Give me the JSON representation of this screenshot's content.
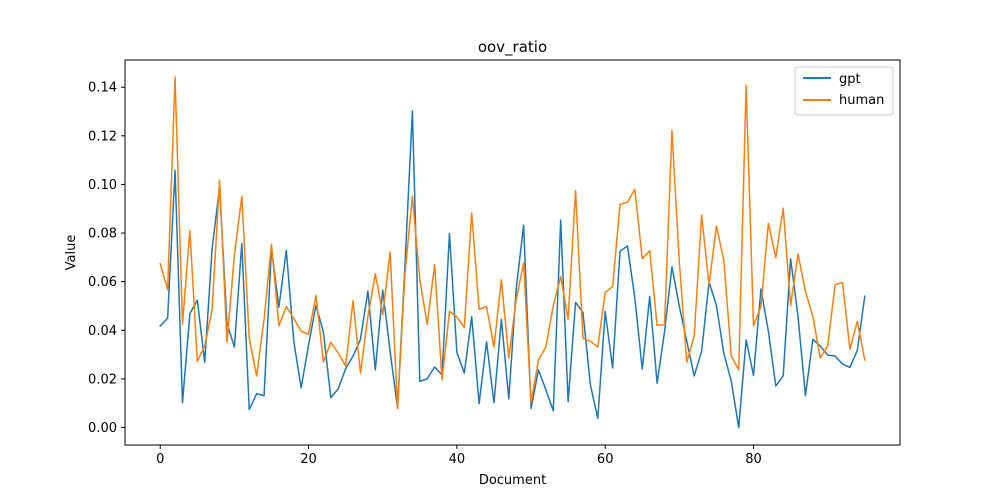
{
  "chart_data": {
    "type": "line",
    "title": "oov_ratio",
    "xlabel": "Document",
    "ylabel": "Value",
    "xlim": [
      -4.75,
      99.75
    ],
    "ylim": [
      -0.0072,
      0.1512
    ],
    "xticks": [
      0,
      20,
      40,
      60,
      80
    ],
    "yticks": [
      0.0,
      0.02,
      0.04,
      0.06,
      0.08,
      0.1,
      0.12,
      0.14
    ],
    "ytick_labels": [
      "0.00",
      "0.02",
      "0.04",
      "0.06",
      "0.08",
      "0.10",
      "0.12",
      "0.14"
    ],
    "legend_position": "top-right",
    "grid": false,
    "x": [
      0,
      1,
      2,
      3,
      4,
      5,
      6,
      7,
      8,
      9,
      10,
      11,
      12,
      13,
      14,
      15,
      16,
      17,
      18,
      19,
      20,
      21,
      22,
      23,
      24,
      25,
      26,
      27,
      28,
      29,
      30,
      31,
      32,
      33,
      34,
      35,
      36,
      37,
      38,
      39,
      40,
      41,
      42,
      43,
      44,
      45,
      46,
      47,
      48,
      49,
      50,
      51,
      52,
      53,
      54,
      55,
      56,
      57,
      58,
      59,
      60,
      61,
      62,
      63,
      64,
      65,
      66,
      67,
      68,
      69,
      70,
      71,
      72,
      73,
      74,
      75,
      76,
      77,
      78,
      79,
      80,
      81,
      82,
      83,
      84,
      85,
      86,
      87,
      88,
      89,
      90,
      91,
      92,
      93,
      94,
      95
    ],
    "series": [
      {
        "name": "gpt",
        "color": "#1f77b4",
        "values": [
          0.0418,
          0.045,
          0.1058,
          0.0102,
          0.0469,
          0.0524,
          0.0268,
          0.0737,
          0.0988,
          0.0429,
          0.0331,
          0.0757,
          0.0074,
          0.0139,
          0.0131,
          0.0737,
          0.0495,
          0.0729,
          0.0357,
          0.0163,
          0.0339,
          0.0503,
          0.0392,
          0.0123,
          0.0159,
          0.0242,
          0.0294,
          0.0363,
          0.0561,
          0.0237,
          0.0565,
          0.0313,
          0.008,
          0.0667,
          0.1302,
          0.019,
          0.02,
          0.0249,
          0.0216,
          0.0798,
          0.0309,
          0.0224,
          0.0456,
          0.0098,
          0.0353,
          0.0102,
          0.0445,
          0.0118,
          0.0571,
          0.0832,
          0.0078,
          0.0237,
          0.0155,
          0.0069,
          0.0853,
          0.0106,
          0.0515,
          0.0473,
          0.0176,
          0.0037,
          0.0477,
          0.0245,
          0.0725,
          0.0747,
          0.0531,
          0.024,
          0.0539,
          0.0182,
          0.0394,
          0.0661,
          0.0498,
          0.0355,
          0.0212,
          0.0314,
          0.0598,
          0.0502,
          0.0304,
          0.0191,
          0.0,
          0.036,
          0.0214,
          0.057,
          0.0396,
          0.0171,
          0.0212,
          0.0694,
          0.0457,
          0.0131,
          0.0363,
          0.0335,
          0.0298,
          0.0294,
          0.0261,
          0.0247,
          0.0318,
          0.054
        ]
      },
      {
        "name": "human",
        "color": "#ff7f0e",
        "values": [
          0.0674,
          0.0567,
          0.1442,
          0.0424,
          0.081,
          0.0273,
          0.0335,
          0.0486,
          0.1018,
          0.0351,
          0.071,
          0.0951,
          0.0367,
          0.0212,
          0.0445,
          0.0754,
          0.0418,
          0.0498,
          0.0449,
          0.0396,
          0.0384,
          0.0543,
          0.0269,
          0.0351,
          0.0306,
          0.0253,
          0.0522,
          0.0224,
          0.0457,
          0.0633,
          0.0465,
          0.0722,
          0.0078,
          0.0633,
          0.0951,
          0.0608,
          0.0424,
          0.0669,
          0.0196,
          0.0478,
          0.0455,
          0.0412,
          0.0882,
          0.0486,
          0.0498,
          0.0331,
          0.0608,
          0.0286,
          0.0527,
          0.0677,
          0.0102,
          0.0278,
          0.0331,
          0.0502,
          0.0621,
          0.0445,
          0.0975,
          0.0367,
          0.0355,
          0.0331,
          0.0555,
          0.058,
          0.0918,
          0.0927,
          0.098,
          0.0694,
          0.0727,
          0.042,
          0.0424,
          0.1222,
          0.0678,
          0.0269,
          0.0376,
          0.0873,
          0.0588,
          0.0829,
          0.0686,
          0.0294,
          0.0237,
          0.1409,
          0.0418,
          0.0498,
          0.084,
          0.0698,
          0.0902,
          0.0502,
          0.0714,
          0.0559,
          0.0457,
          0.0286,
          0.0335,
          0.0588,
          0.0596,
          0.0322,
          0.0437,
          0.0278
        ]
      }
    ]
  }
}
